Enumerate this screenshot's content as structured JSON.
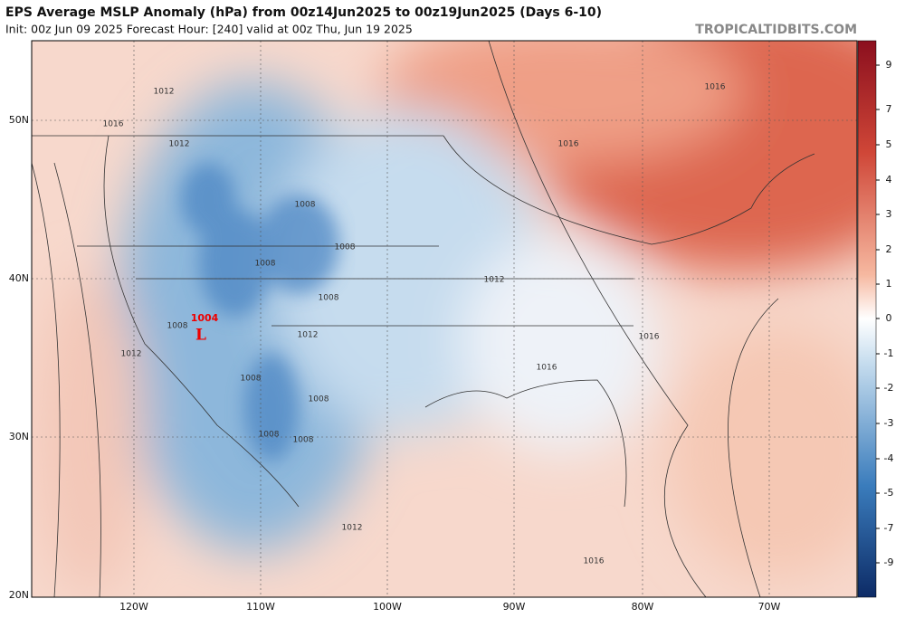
{
  "header": {
    "title": "EPS Average MSLP Anomaly (hPa) from 00z14Jun2025 to 00z19Jun2025 (Days 6-10)",
    "subtitle": "Init: 00z Jun 09 2025   Forecast Hour: [240]   valid at 00z Thu, Jun 19 2025",
    "source": "TROPICALTIDBITS.COM"
  },
  "map": {
    "lat_labels": [
      "50N",
      "40N",
      "30N",
      "20N"
    ],
    "lon_labels": [
      "120W",
      "110W",
      "100W",
      "90W",
      "80W",
      "70W"
    ],
    "isobar_labels": [
      "1012",
      "1016",
      "1012",
      "1016",
      "1016",
      "1008",
      "1008",
      "1008",
      "1012",
      "1008",
      "1008",
      "1012",
      "1016",
      "1016",
      "1012",
      "1008",
      "1008",
      "1008",
      "1008",
      "1012",
      "1016"
    ],
    "low": {
      "pressure": "1004",
      "symbol": "L"
    }
  },
  "colorbar": {
    "ticks": [
      9,
      7,
      5,
      4,
      3,
      2,
      1,
      0,
      -1,
      -2,
      -3,
      -4,
      -5,
      -7,
      -9
    ]
  }
}
